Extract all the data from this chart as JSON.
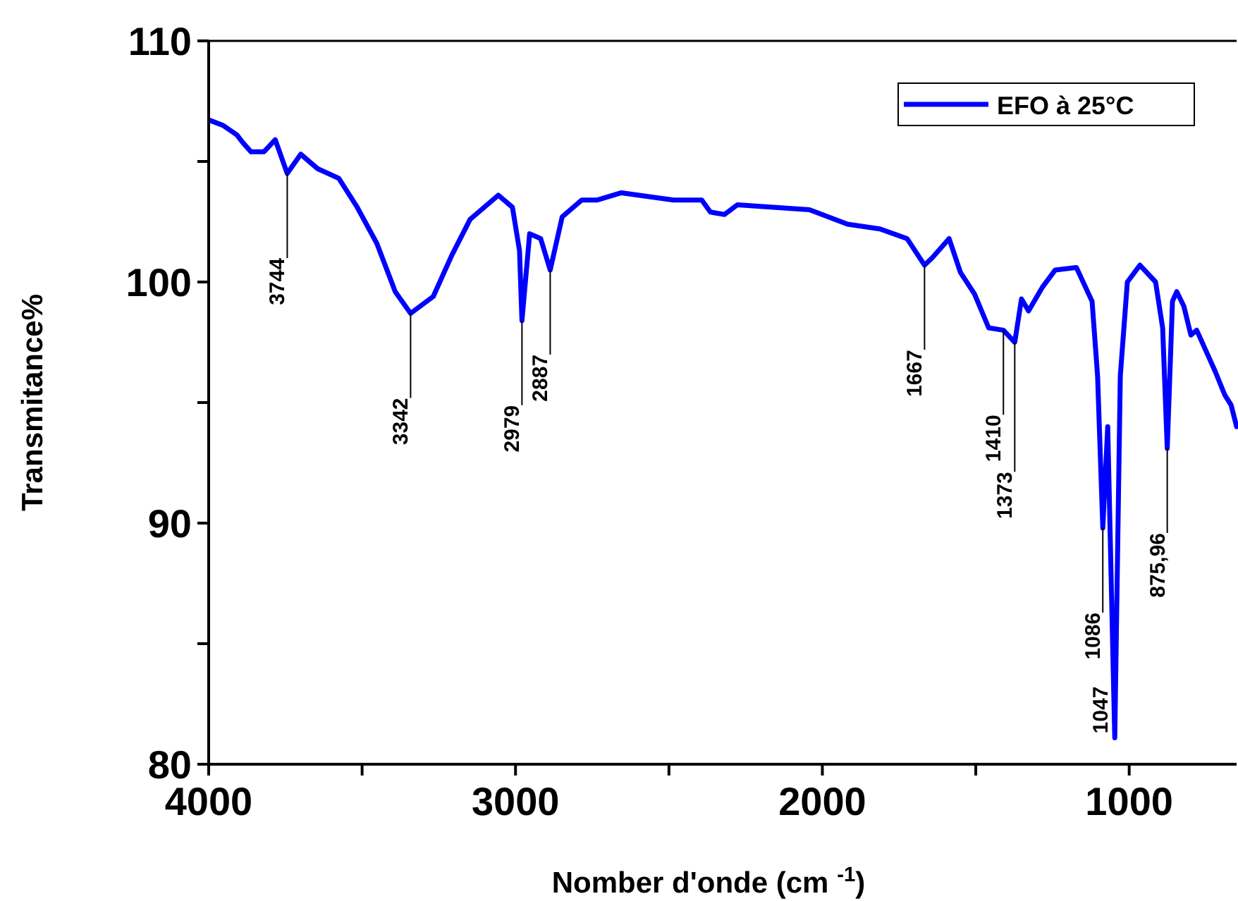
{
  "chart_data": {
    "type": "line",
    "xlabel": "Nomber d'onde (cm $^{-1}$)",
    "ylabel": "Transmitance%",
    "xlim": [
      4000,
      650
    ],
    "ylim": [
      80,
      110
    ],
    "xticks": [
      4000,
      {
        "value": 3500,
        "label": null
      },
      3000,
      {
        "value": 2500,
        "label": null
      },
      2000,
      {
        "value": 1500,
        "label": null
      },
      1000
    ],
    "yticks": [
      80,
      {
        "value": 85,
        "label": null
      },
      90,
      {
        "value": 95,
        "label": null
      },
      100,
      {
        "value": 105,
        "label": null
      },
      110
    ],
    "legend": "top right",
    "series": [
      {
        "name": "EFO à 25°C",
        "color": "#0000ff",
        "x": [
          3995,
          3954,
          3908,
          3890,
          3862,
          3820,
          3783,
          3744,
          3700,
          3645,
          3576,
          3516,
          3452,
          3392,
          3342,
          3268,
          3208,
          3148,
          3056,
          3010,
          2987,
          2979,
          2954,
          2918,
          2887,
          2848,
          2784,
          2733,
          2655,
          2485,
          2393,
          2365,
          2319,
          2277,
          2042,
          1918,
          1812,
          1724,
          1667,
          1642,
          1587,
          1550,
          1504,
          1458,
          1410,
          1373,
          1351,
          1328,
          1282,
          1241,
          1172,
          1121,
          1103,
          1086,
          1070,
          1047,
          1029,
          1006,
          965,
          914,
          891,
          876,
          859,
          845,
          822,
          799,
          780,
          720,
          688,
          668,
          650
        ],
        "values": [
          106.7,
          106.5,
          106.1,
          105.8,
          105.4,
          105.4,
          105.9,
          104.5,
          105.3,
          104.7,
          104.3,
          103.1,
          101.6,
          99.6,
          98.7,
          99.4,
          101.1,
          102.6,
          103.6,
          103.1,
          101.3,
          98.4,
          102.0,
          101.8,
          100.5,
          102.7,
          103.4,
          103.4,
          103.7,
          103.4,
          103.4,
          102.9,
          102.8,
          103.2,
          103.0,
          102.4,
          102.2,
          101.8,
          100.7,
          101.0,
          101.8,
          100.4,
          99.5,
          98.1,
          98.0,
          97.5,
          99.3,
          98.8,
          99.8,
          100.5,
          100.6,
          99.2,
          96.1,
          89.8,
          94.0,
          81.1,
          96.1,
          100.0,
          100.7,
          100.0,
          98.1,
          93.1,
          99.2,
          99.6,
          99.0,
          97.8,
          98.0,
          96.3,
          95.3,
          94.9,
          94.0
        ]
      }
    ],
    "annotations": [
      {
        "text": "3744",
        "x": 3744,
        "y": 104.5
      },
      {
        "text": "3342",
        "x": 3342,
        "y": 98.7
      },
      {
        "text": "2979",
        "x": 2979,
        "y": 98.4
      },
      {
        "text": "2887",
        "x": 2887,
        "y": 100.5
      },
      {
        "text": "1667",
        "x": 1667,
        "y": 100.7
      },
      {
        "text": "1410",
        "x": 1410,
        "y": 98.0
      },
      {
        "text": "1373",
        "x": 1373,
        "y": 97.5
      },
      {
        "text": "1086",
        "x": 1086,
        "y": 89.8
      },
      {
        "text": "1047",
        "x": 1047,
        "y": 81.1
      },
      {
        "text": "875,96",
        "x": 876,
        "y": 93.1
      }
    ]
  }
}
